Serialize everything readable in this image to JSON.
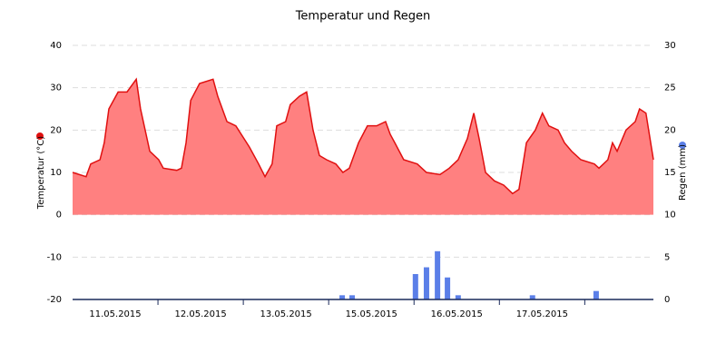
{
  "chart_data": {
    "type": "area_bar_dual",
    "title": "Temperatur und Regen",
    "ylabel": "Temperatur (°C)",
    "y2label": "Regen (mm)",
    "ylim": [
      -20,
      40
    ],
    "yticks": [
      -20,
      -10,
      0,
      10,
      20,
      30,
      40
    ],
    "y2lim": [
      0,
      30
    ],
    "y2ticks": [
      0,
      5,
      10,
      15,
      20,
      25,
      30
    ],
    "xlim": [
      0,
      163.3
    ],
    "xticks": [
      {
        "value": 12,
        "label": "11.05.2015"
      },
      {
        "value": 36,
        "label": "12.05.2015"
      },
      {
        "value": 60,
        "label": "13.05.2015"
      },
      {
        "value": 84,
        "label": "15.05.2015"
      },
      {
        "value": 108,
        "label": "16.05.2015"
      },
      {
        "value": 132,
        "label": "17.05.2015"
      }
    ],
    "grid": true,
    "series": [
      {
        "type": "area",
        "axis": "y",
        "color": "#e01010",
        "fill": "#ff8080",
        "x": [
          0,
          3.8,
          5.1,
          7.7,
          8.9,
          10.2,
          12.8,
          15.3,
          17.9,
          19.1,
          21.7,
          24.2,
          25.5,
          29.3,
          30.6,
          31.9,
          33.2,
          35.7,
          39.5,
          40.8,
          43.4,
          45.9,
          49.7,
          52.3,
          54.1,
          56.1,
          57.4,
          59.9,
          61.2,
          63.8,
          65.8,
          67.6,
          69.4,
          71.4,
          74.0,
          76.0,
          77.8,
          80.4,
          82.9,
          85.5,
          88.0,
          89.3,
          90.6,
          93.1,
          96.9,
          99.5,
          103.3,
          105.9,
          108.4,
          111.0,
          112.8,
          114.3,
          116.1,
          118.6,
          121.2,
          123.7,
          125.5,
          127.6,
          130.1,
          132.1,
          133.9,
          136.5,
          138.3,
          140.3,
          142.9,
          146.7,
          148.0,
          150.5,
          151.8,
          153.1,
          155.6,
          158.2,
          159.4,
          161.2,
          163.3
        ],
        "values": [
          10,
          9,
          12,
          13,
          17,
          25,
          29,
          29,
          32,
          25,
          15,
          13,
          11,
          10.5,
          11,
          17,
          27,
          31,
          32,
          28,
          22,
          21,
          16,
          12,
          9,
          12,
          21,
          22,
          26,
          28,
          29,
          20,
          14,
          13,
          12,
          10,
          11,
          17,
          21,
          21,
          22,
          19,
          17,
          13,
          12,
          10,
          9.5,
          11,
          13,
          18,
          24,
          18,
          10,
          8,
          7,
          5,
          6,
          17,
          20,
          24,
          21,
          20,
          17,
          15,
          13,
          12,
          11,
          13,
          17,
          15,
          20,
          22,
          25,
          24,
          13
        ]
      },
      {
        "type": "bar",
        "axis": "y2",
        "color": "#5b7fe8",
        "x": [
          75.8,
          78.6,
          96.4,
          99.5,
          102.6,
          105.4,
          108.4,
          129.3,
          147.2
        ],
        "values": [
          0.5,
          0.5,
          3,
          3.8,
          5.7,
          2.6,
          0.5,
          0.5,
          1
        ]
      }
    ]
  }
}
